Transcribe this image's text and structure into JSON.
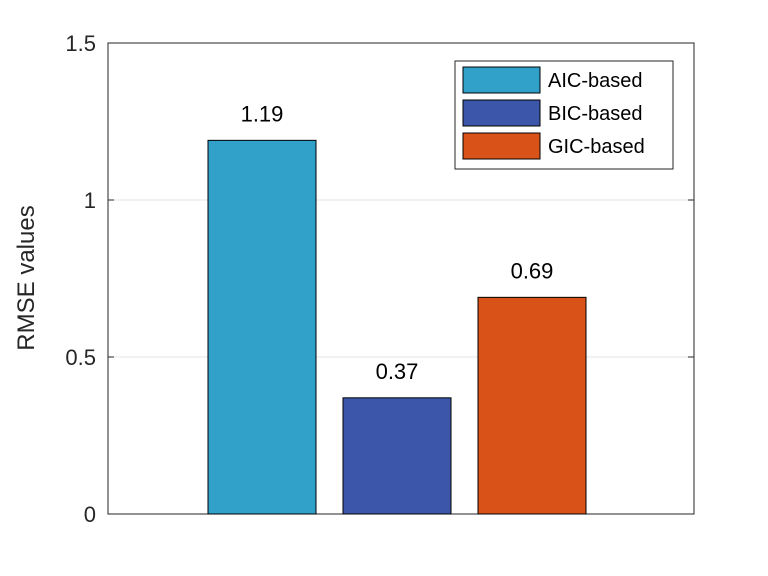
{
  "chart_data": {
    "type": "bar",
    "ylabel": "RMSE values",
    "ylim": [
      0,
      1.5
    ],
    "yticks": [
      0,
      0.5,
      1,
      1.5
    ],
    "ytick_labels": [
      "0",
      "0.5",
      "1",
      "1.5"
    ],
    "grid": "horizontal",
    "legend_position": "top-right",
    "bars": [
      {
        "name": "AIC-based",
        "value": 1.19,
        "label": "1.19",
        "color": "#31a1ca"
      },
      {
        "name": "BIC-based",
        "value": 0.37,
        "label": "0.37",
        "color": "#3c56a9"
      },
      {
        "name": "GIC-based",
        "value": 0.69,
        "label": "0.69",
        "color": "#d95319"
      }
    ]
  }
}
